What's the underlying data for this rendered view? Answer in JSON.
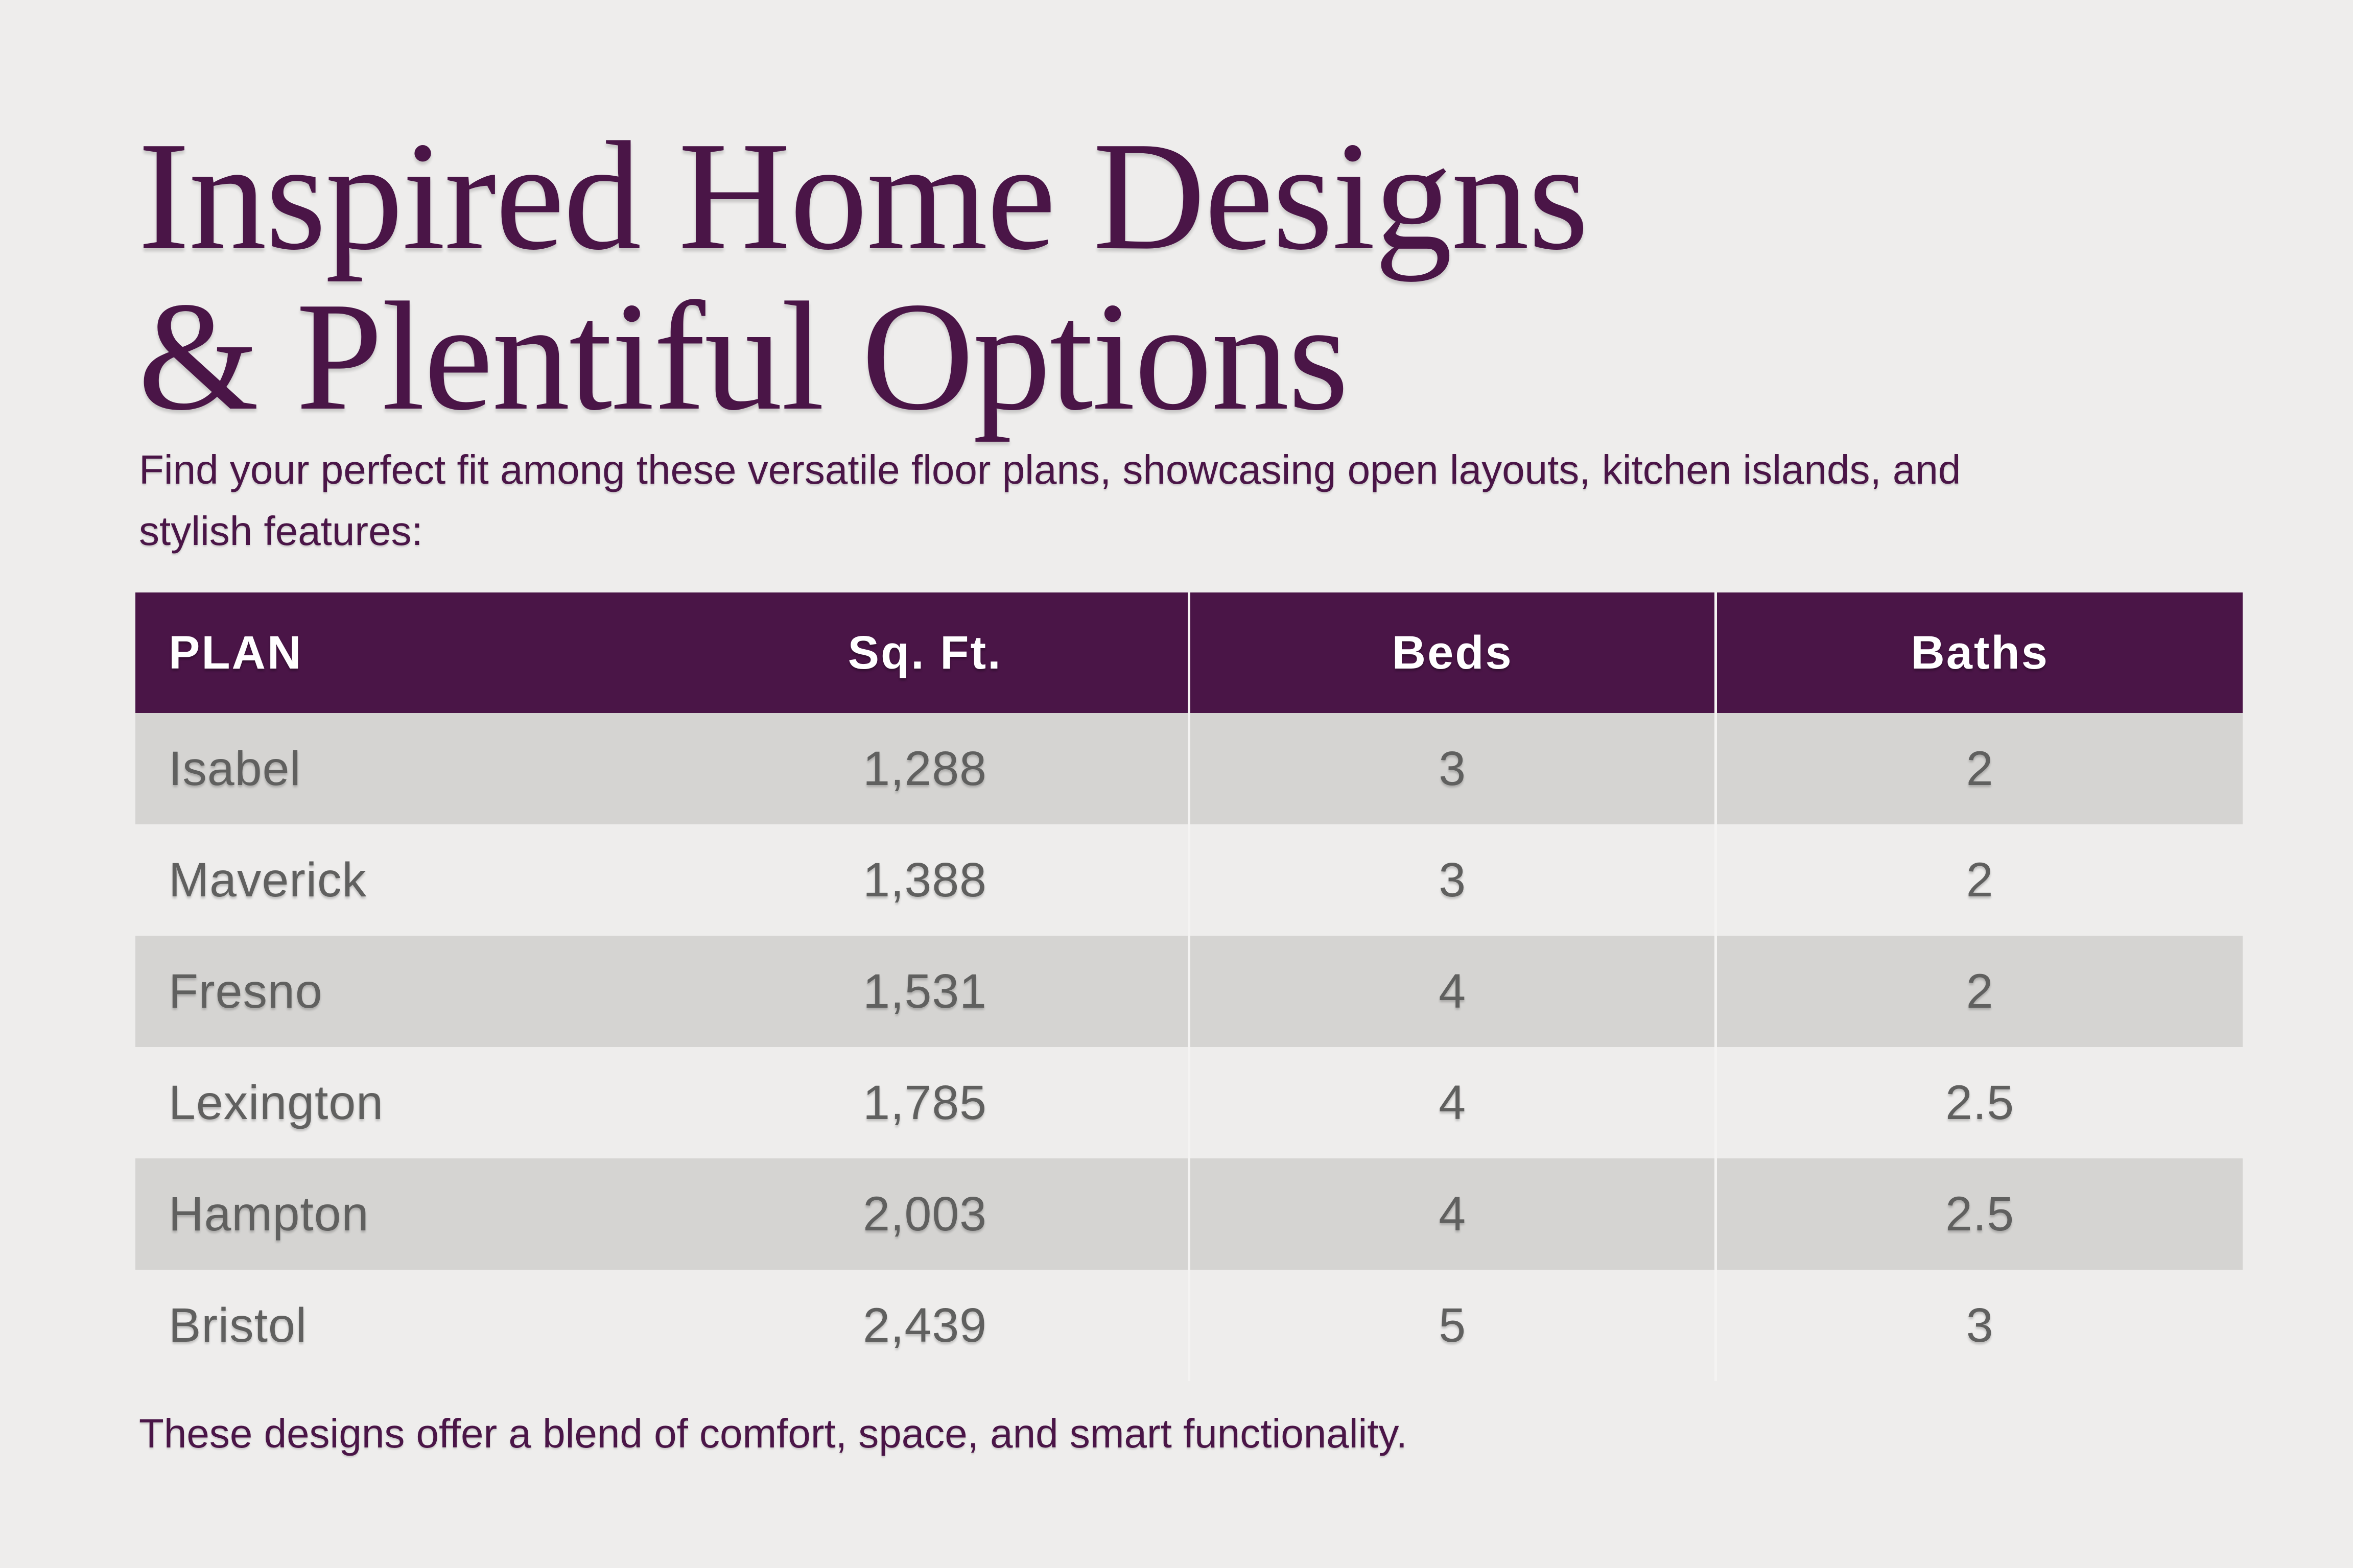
{
  "header": {
    "title_line1": "Inspired Home Designs",
    "title_line2": "& Plentiful Options",
    "subtitle_line1": "Find your perfect fit among these versatile floor plans, showcasing open layouts, kitchen islands, and",
    "subtitle_line2": "stylish features:"
  },
  "table": {
    "columns": [
      "PLAN",
      "Sq. Ft.",
      "Beds",
      "Baths"
    ],
    "rows": [
      [
        "Isabel",
        "1,288",
        "3",
        "2"
      ],
      [
        "Maverick",
        "1,388",
        "3",
        "2"
      ],
      [
        "Fresno",
        "1,531",
        "4",
        "2"
      ],
      [
        "Lexington",
        "1,785",
        "4",
        "2.5"
      ],
      [
        "Hampton",
        "2,003",
        "4",
        "2.5"
      ],
      [
        "Bristol",
        "2,439",
        "5",
        "3"
      ]
    ]
  },
  "footer": {
    "note": "These designs offer a blend of comfort, space, and smart functionality."
  },
  "colors": {
    "page_bg": "#eeedec",
    "accent_purple": "#4a1547",
    "header_bg": "#4a1547",
    "header_text": "#ffffff",
    "row_dark": "#d5d4d2",
    "row_light": "#eeedec",
    "body_text": "#60605f",
    "divider": "#f4f3f2"
  }
}
